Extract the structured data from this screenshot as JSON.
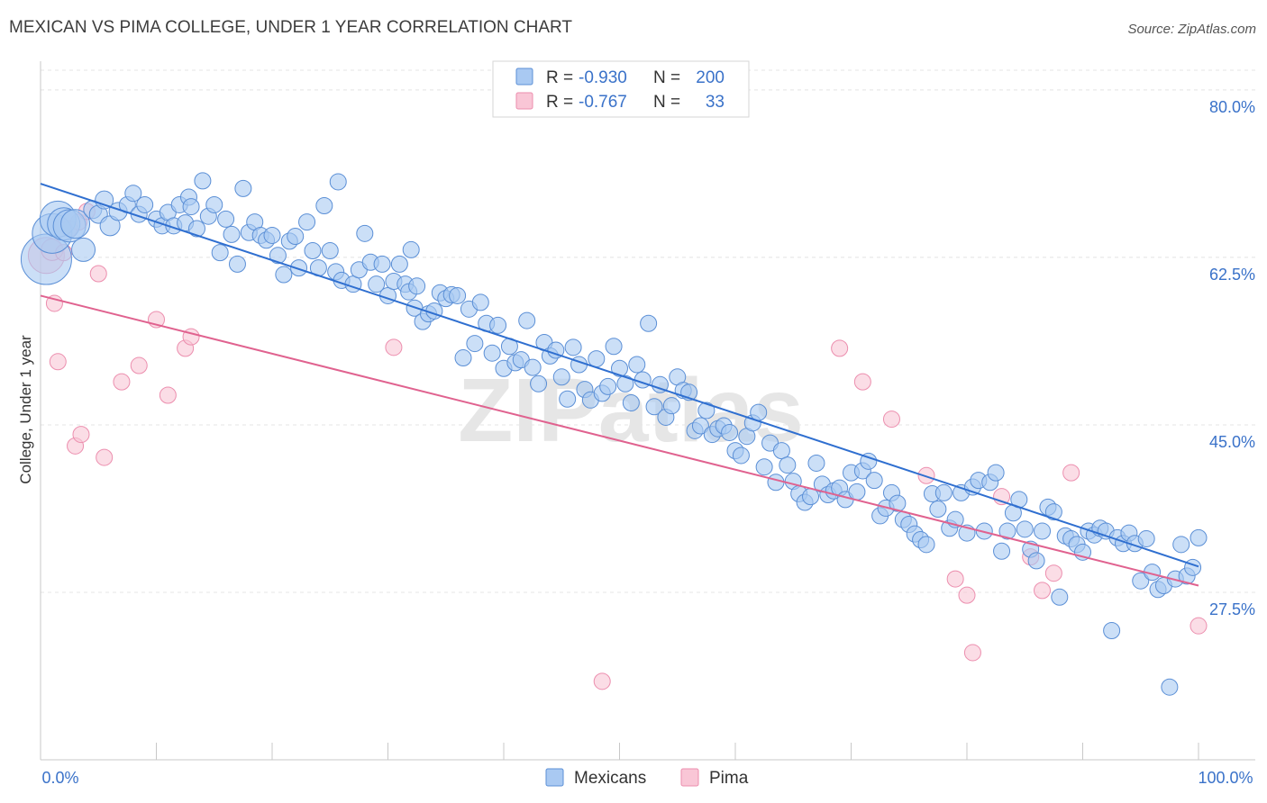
{
  "title": "MEXICAN VS PIMA COLLEGE, UNDER 1 YEAR CORRELATION CHART",
  "source": "Source: ZipAtlas.com",
  "watermark": "ZIPatlas",
  "stats_legend": {
    "rows": [
      {
        "r_label": "R =",
        "r_value": "-0.930",
        "n_label": "N =",
        "n_value": "200",
        "color": "#5b9bd5"
      },
      {
        "r_label": "R =",
        "r_value": "-0.767",
        "n_label": "N =",
        "n_value": "33",
        "color": "#f48fb1"
      }
    ]
  },
  "colors": {
    "mexicans_fill": "#a9c9f2",
    "mexicans_stroke": "#5b8fd6",
    "mexicans_line": "#2f6fd0",
    "pima_fill": "#f9c6d6",
    "pima_stroke": "#ec8eae",
    "pima_line": "#e0628f",
    "tick_label": "#3a72c9"
  },
  "chart_data": {
    "type": "scatter",
    "title": "MEXICAN VS PIMA COLLEGE, UNDER 1 YEAR CORRELATION CHART",
    "xlabel": "",
    "ylabel": "College, Under 1 year",
    "xlim": [
      0,
      100
    ],
    "ylim": [
      10,
      83
    ],
    "x_tick_labels": [
      "0.0%",
      "100.0%"
    ],
    "y_ticks": [
      27.5,
      45.0,
      62.5,
      80.0
    ],
    "y_tick_labels": [
      "27.5%",
      "45.0%",
      "62.5%",
      "80.0%"
    ],
    "grid": true,
    "legend": {
      "position": "bottom-center",
      "entries": [
        "Mexicans",
        "Pima"
      ]
    },
    "series": [
      {
        "name": "Mexicans",
        "trendline": {
          "x": [
            0,
            100
          ],
          "y": [
            70.2,
            30.2
          ]
        },
        "points": [
          [
            0.5,
            62.3,
            28
          ],
          [
            1.0,
            65.0,
            22
          ],
          [
            1.5,
            66.5,
            20
          ],
          [
            2.0,
            66.0,
            18
          ],
          [
            2.5,
            65.8,
            18
          ],
          [
            3.0,
            66.0,
            16
          ],
          [
            3.7,
            63.3,
            13
          ],
          [
            4.5,
            67.5,
            10
          ],
          [
            5.0,
            67.0,
            10
          ],
          [
            5.5,
            68.5,
            10
          ],
          [
            6.0,
            65.8,
            11
          ],
          [
            6.7,
            67.3,
            10
          ],
          [
            7.5,
            68.0,
            9
          ],
          [
            8.0,
            69.2,
            9
          ],
          [
            8.5,
            67.0,
            9
          ],
          [
            9.0,
            68.0,
            9
          ],
          [
            10.0,
            66.5,
            9
          ],
          [
            10.5,
            65.8,
            9
          ],
          [
            11.0,
            67.2,
            9
          ],
          [
            11.5,
            65.8,
            9
          ],
          [
            12.0,
            68.0,
            9
          ],
          [
            12.5,
            66.1,
            9
          ],
          [
            12.8,
            68.8,
            9
          ],
          [
            13.0,
            67.8,
            9
          ],
          [
            13.5,
            65.5,
            9
          ],
          [
            14.0,
            70.5,
            9
          ],
          [
            14.5,
            66.8,
            9
          ],
          [
            15.0,
            68.0,
            9
          ],
          [
            15.5,
            63.0,
            9
          ],
          [
            16.0,
            66.5,
            9
          ],
          [
            16.5,
            64.9,
            9
          ],
          [
            17.0,
            61.8,
            9
          ],
          [
            17.5,
            69.7,
            9
          ],
          [
            18.0,
            65.1,
            9
          ],
          [
            18.5,
            66.2,
            9
          ],
          [
            19.0,
            64.8,
            9
          ],
          [
            19.5,
            64.3,
            9
          ],
          [
            20.0,
            64.8,
            9
          ],
          [
            20.5,
            62.7,
            9
          ],
          [
            21.0,
            60.7,
            9
          ],
          [
            21.5,
            64.2,
            9
          ],
          [
            22.0,
            64.7,
            9
          ],
          [
            22.3,
            61.4,
            9
          ],
          [
            23.0,
            66.2,
            9
          ],
          [
            23.5,
            63.2,
            9
          ],
          [
            24.0,
            61.4,
            9
          ],
          [
            24.5,
            67.9,
            9
          ],
          [
            25.0,
            63.2,
            9
          ],
          [
            25.5,
            61.0,
            9
          ],
          [
            25.7,
            70.4,
            9
          ],
          [
            26.0,
            60.1,
            9
          ],
          [
            27.0,
            59.7,
            9
          ],
          [
            27.5,
            61.2,
            9
          ],
          [
            28.0,
            65.0,
            9
          ],
          [
            28.5,
            62.0,
            9
          ],
          [
            29.0,
            59.7,
            9
          ],
          [
            29.5,
            61.8,
            9
          ],
          [
            30.0,
            58.5,
            9
          ],
          [
            30.5,
            60.0,
            9
          ],
          [
            31.0,
            61.8,
            9
          ],
          [
            31.5,
            59.7,
            9
          ],
          [
            31.8,
            58.9,
            9
          ],
          [
            32.0,
            63.3,
            9
          ],
          [
            32.3,
            57.2,
            9
          ],
          [
            32.5,
            59.5,
            9
          ],
          [
            33.0,
            55.8,
            9
          ],
          [
            33.5,
            56.6,
            9
          ],
          [
            34.0,
            56.9,
            9
          ],
          [
            34.5,
            58.8,
            9
          ],
          [
            35.0,
            58.2,
            9
          ],
          [
            35.5,
            58.6,
            9
          ],
          [
            36.0,
            58.5,
            9
          ],
          [
            36.5,
            52.0,
            9
          ],
          [
            37.0,
            57.1,
            9
          ],
          [
            37.5,
            53.5,
            9
          ],
          [
            38.0,
            57.8,
            9
          ],
          [
            38.5,
            55.6,
            9
          ],
          [
            39.0,
            52.5,
            9
          ],
          [
            39.5,
            55.4,
            9
          ],
          [
            40.0,
            50.9,
            9
          ],
          [
            40.5,
            53.2,
            9
          ],
          [
            41.0,
            51.5,
            9
          ],
          [
            41.5,
            51.8,
            9
          ],
          [
            42.0,
            55.9,
            9
          ],
          [
            42.5,
            51.0,
            9
          ],
          [
            43.0,
            49.3,
            9
          ],
          [
            43.5,
            53.6,
            9
          ],
          [
            44.0,
            52.2,
            9
          ],
          [
            44.5,
            52.8,
            9
          ],
          [
            45.0,
            50.0,
            9
          ],
          [
            45.5,
            47.7,
            9
          ],
          [
            46.0,
            53.1,
            9
          ],
          [
            46.5,
            51.3,
            9
          ],
          [
            47.0,
            48.7,
            9
          ],
          [
            47.5,
            47.6,
            9
          ],
          [
            48.0,
            51.9,
            9
          ],
          [
            48.5,
            48.3,
            9
          ],
          [
            49.0,
            49.0,
            9
          ],
          [
            49.5,
            53.2,
            9
          ],
          [
            50.0,
            50.9,
            9
          ],
          [
            50.5,
            49.3,
            9
          ],
          [
            51.0,
            47.3,
            9
          ],
          [
            51.5,
            51.3,
            9
          ],
          [
            52.0,
            49.7,
            9
          ],
          [
            52.5,
            55.6,
            9
          ],
          [
            53.0,
            46.9,
            9
          ],
          [
            53.5,
            49.2,
            9
          ],
          [
            54.0,
            45.8,
            9
          ],
          [
            54.5,
            47.0,
            9
          ],
          [
            55.0,
            50.0,
            9
          ],
          [
            55.5,
            48.6,
            9
          ],
          [
            56.0,
            48.4,
            9
          ],
          [
            56.5,
            44.4,
            9
          ],
          [
            57.0,
            44.9,
            9
          ],
          [
            57.5,
            46.5,
            9
          ],
          [
            58.0,
            44.0,
            9
          ],
          [
            58.5,
            44.6,
            9
          ],
          [
            59.0,
            44.9,
            9
          ],
          [
            59.5,
            44.2,
            9
          ],
          [
            60.0,
            42.3,
            9
          ],
          [
            60.5,
            41.8,
            9
          ],
          [
            61.0,
            43.8,
            9
          ],
          [
            61.5,
            45.2,
            9
          ],
          [
            62.0,
            46.3,
            9
          ],
          [
            62.5,
            40.6,
            9
          ],
          [
            63.0,
            43.1,
            9
          ],
          [
            63.5,
            39.0,
            9
          ],
          [
            64.0,
            42.3,
            9
          ],
          [
            64.5,
            40.8,
            9
          ],
          [
            65.0,
            39.1,
            9
          ],
          [
            65.5,
            37.8,
            9
          ],
          [
            66.0,
            36.9,
            9
          ],
          [
            66.5,
            37.5,
            9
          ],
          [
            67.0,
            41.0,
            9
          ],
          [
            67.5,
            38.8,
            9
          ],
          [
            68.0,
            37.7,
            9
          ],
          [
            68.5,
            38.1,
            9
          ],
          [
            69.0,
            38.4,
            9
          ],
          [
            69.5,
            37.2,
            9
          ],
          [
            70.0,
            40.0,
            9
          ],
          [
            70.5,
            38.0,
            9
          ],
          [
            71.0,
            40.2,
            9
          ],
          [
            71.5,
            41.2,
            9
          ],
          [
            72.0,
            39.2,
            9
          ],
          [
            72.5,
            35.5,
            9
          ],
          [
            73.0,
            36.3,
            9
          ],
          [
            73.5,
            37.9,
            9
          ],
          [
            74.0,
            36.8,
            9
          ],
          [
            74.5,
            35.1,
            9
          ],
          [
            75.0,
            34.6,
            9
          ],
          [
            75.5,
            33.6,
            9
          ],
          [
            76.0,
            33.0,
            9
          ],
          [
            76.5,
            32.5,
            9
          ],
          [
            77.0,
            37.8,
            9
          ],
          [
            77.5,
            36.2,
            9
          ],
          [
            78.0,
            37.9,
            9
          ],
          [
            78.5,
            34.2,
            9
          ],
          [
            79.0,
            35.1,
            9
          ],
          [
            79.5,
            37.9,
            9
          ],
          [
            80.0,
            33.7,
            9
          ],
          [
            80.5,
            38.5,
            9
          ],
          [
            81.0,
            39.2,
            9
          ],
          [
            81.5,
            33.9,
            9
          ],
          [
            82.0,
            39.0,
            9
          ],
          [
            82.5,
            40.0,
            9
          ],
          [
            83.0,
            31.8,
            9
          ],
          [
            83.5,
            33.9,
            9
          ],
          [
            84.0,
            35.8,
            9
          ],
          [
            84.5,
            37.2,
            9
          ],
          [
            85.0,
            34.1,
            9
          ],
          [
            85.5,
            32.0,
            9
          ],
          [
            86.0,
            30.8,
            9
          ],
          [
            86.5,
            33.9,
            9
          ],
          [
            87.0,
            36.4,
            9
          ],
          [
            87.5,
            35.9,
            9
          ],
          [
            88.0,
            27.0,
            9
          ],
          [
            88.5,
            33.4,
            9
          ],
          [
            89.0,
            33.1,
            9
          ],
          [
            89.5,
            32.5,
            9
          ],
          [
            90.0,
            31.7,
            9
          ],
          [
            90.5,
            33.9,
            9
          ],
          [
            91.0,
            33.5,
            9
          ],
          [
            91.5,
            34.2,
            9
          ],
          [
            92.0,
            33.9,
            9
          ],
          [
            92.5,
            23.5,
            9
          ],
          [
            93.0,
            33.2,
            9
          ],
          [
            93.5,
            32.6,
            9
          ],
          [
            94.0,
            33.7,
            9
          ],
          [
            94.5,
            32.6,
            9
          ],
          [
            95.0,
            28.7,
            9
          ],
          [
            95.5,
            33.1,
            9
          ],
          [
            96.0,
            29.6,
            9
          ],
          [
            96.5,
            27.8,
            9
          ],
          [
            97.0,
            28.2,
            9
          ],
          [
            97.5,
            17.6,
            9
          ],
          [
            98.0,
            28.9,
            9
          ],
          [
            98.5,
            32.5,
            9
          ],
          [
            99.0,
            29.2,
            9
          ],
          [
            99.5,
            30.1,
            9
          ],
          [
            100.0,
            33.2,
            9
          ]
        ]
      },
      {
        "name": "Pima",
        "trendline": {
          "x": [
            0,
            100
          ],
          "y": [
            58.5,
            28.2
          ]
        },
        "points": [
          [
            0.5,
            62.7,
            20
          ],
          [
            1.0,
            63.3,
            12
          ],
          [
            1.2,
            57.7,
            9
          ],
          [
            1.5,
            51.6,
            9
          ],
          [
            2.0,
            63.0,
            9
          ],
          [
            2.5,
            65.5,
            9
          ],
          [
            3.0,
            42.8,
            9
          ],
          [
            3.3,
            66.2,
            9
          ],
          [
            3.5,
            44.0,
            9
          ],
          [
            4.0,
            67.3,
            9
          ],
          [
            5.0,
            60.8,
            9
          ],
          [
            5.5,
            41.6,
            9
          ],
          [
            7.0,
            49.5,
            9
          ],
          [
            8.5,
            51.2,
            9
          ],
          [
            10.0,
            56.0,
            9
          ],
          [
            11.0,
            48.1,
            9
          ],
          [
            12.5,
            53.0,
            9
          ],
          [
            13.0,
            54.2,
            9
          ],
          [
            30.5,
            53.1,
            9
          ],
          [
            48.5,
            18.2,
            9
          ],
          [
            69.0,
            53.0,
            9
          ],
          [
            71.0,
            49.5,
            9
          ],
          [
            73.5,
            45.6,
            9
          ],
          [
            76.5,
            39.7,
            9
          ],
          [
            79.0,
            28.9,
            9
          ],
          [
            80.0,
            27.2,
            9
          ],
          [
            80.5,
            21.2,
            9
          ],
          [
            83.0,
            37.5,
            9
          ],
          [
            85.5,
            31.2,
            9
          ],
          [
            86.5,
            27.7,
            9
          ],
          [
            87.5,
            29.5,
            9
          ],
          [
            89.0,
            40.0,
            9
          ],
          [
            100.0,
            24.0,
            9
          ]
        ]
      }
    ]
  }
}
